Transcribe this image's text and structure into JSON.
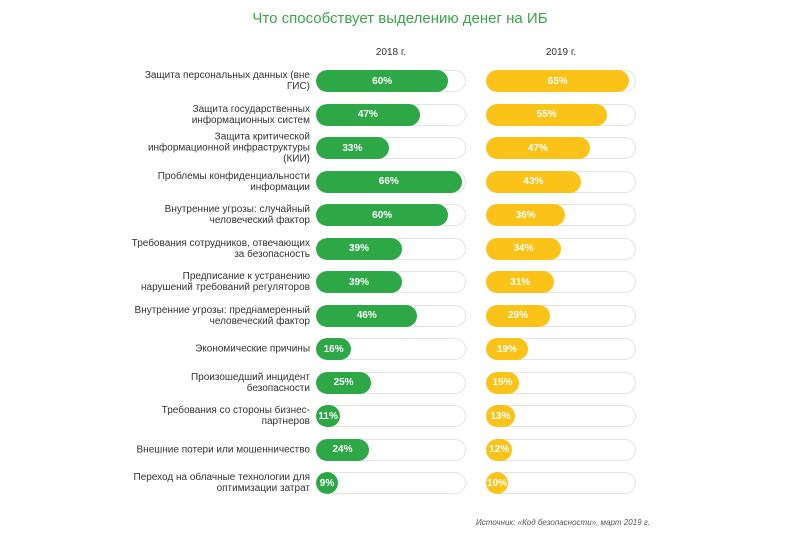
{
  "chart_data": {
    "type": "bar",
    "title": "Что способствует выделению денег на ИБ",
    "categories": [
      "Защита персональных данных (вне ГИС)",
      "Защита государственных информационных систем",
      "Защита критической информационной инфраструктуры (КИИ)",
      "Проблемы конфиденциальности информации",
      "Внутренние угрозы: случайный человеческий фактор",
      "Требования сотрудников, отвечающих за безопасность",
      "Предписание к устранению нарушений требований регуляторов",
      "Внутренние угрозы: преднамеренный человеческий фактор",
      "Экономические причины",
      "Произошедший инцидент безопасности",
      "Требования со стороны бизнес-партнеров",
      "Внешние потери или мошенничество",
      "Переход на облачные технологии для оптимизации затрат"
    ],
    "series": [
      {
        "name": "2018 г.",
        "color": "#2ea847",
        "values": [
          60,
          47,
          33,
          66,
          60,
          39,
          39,
          46,
          16,
          25,
          11,
          24,
          9
        ]
      },
      {
        "name": "2019 г.",
        "color": "#fbc318",
        "values": [
          65,
          55,
          47,
          43,
          36,
          34,
          31,
          29,
          19,
          15,
          13,
          12,
          10
        ]
      }
    ],
    "xlim": [
      0,
      68
    ],
    "unit": "%",
    "source": "Источник: «Код безопасности», март 2019 г."
  }
}
